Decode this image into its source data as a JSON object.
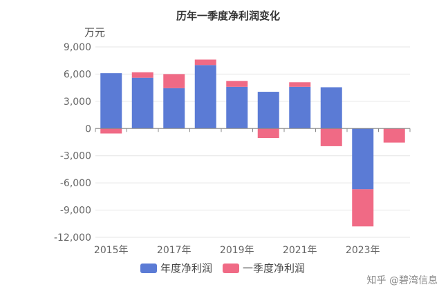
{
  "chart_data": {
    "type": "bar",
    "stacked": true,
    "title": "历年一季度净利润变化",
    "unit_label": "万元",
    "x": [
      "2015年",
      "2016年",
      "2017年",
      "2018年",
      "2019年",
      "2020年",
      "2021年",
      "2022年",
      "2023年",
      "2024年"
    ],
    "x_tick_labels": [
      "2015年",
      "2017年",
      "2019年",
      "2021年",
      "2023年"
    ],
    "series": [
      {
        "name": "年度净利润",
        "color": "#5b7bd5",
        "values": [
          6100,
          5600,
          4450,
          7000,
          4600,
          4050,
          4600,
          4550,
          -6700,
          null
        ]
      },
      {
        "name": "一季度净利润",
        "color": "#f06a85",
        "values": [
          -550,
          600,
          1550,
          600,
          650,
          -1050,
          500,
          -1950,
          -4100,
          -1550
        ]
      }
    ],
    "yticks": [
      "9,000",
      "6,000",
      "3,000",
      "0",
      "-3,000",
      "-6,000",
      "-9,000",
      "-12,000"
    ],
    "ylim": [
      -12000,
      9000
    ],
    "grid": true,
    "legend_position": "bottom"
  },
  "watermark": "知乎 @碧湾信息"
}
